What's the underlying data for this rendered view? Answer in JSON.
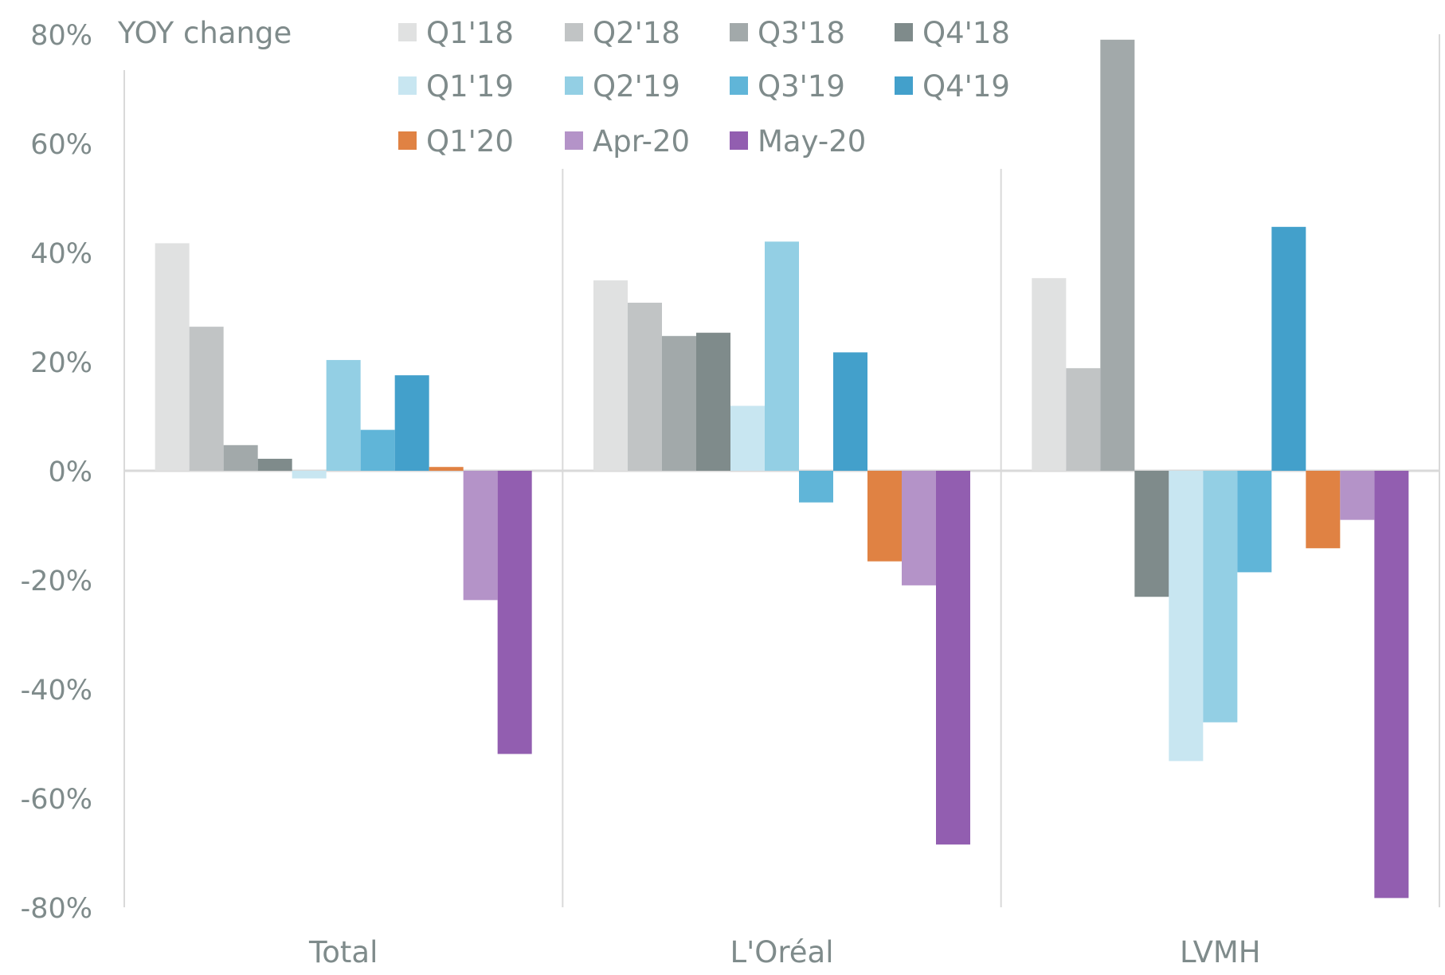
{
  "chart_data": {
    "type": "bar",
    "ylabel": "YOY change",
    "ylim": [
      -80,
      80
    ],
    "yticks": [
      "80%",
      "60%",
      "40%",
      "20%",
      "0%",
      "-20%",
      "-40%",
      "-60%",
      "-80%"
    ],
    "ytick_values": [
      80,
      60,
      40,
      20,
      0,
      -20,
      -40,
      -60,
      -80
    ],
    "grid": false,
    "legend_placement": "top",
    "categories": [
      "Total",
      "L'Oréal",
      "LVMH"
    ],
    "series": [
      {
        "name": "Q1'18",
        "color": "#e0e1e1",
        "values": [
          41.7,
          34.9,
          35.3
        ]
      },
      {
        "name": "Q2'18",
        "color": "#c1c4c5",
        "values": [
          26.4,
          30.8,
          18.8
        ]
      },
      {
        "name": "Q3'18",
        "color": "#a2a9aa",
        "values": [
          4.7,
          24.7,
          79.0
        ]
      },
      {
        "name": "Q4'18",
        "color": "#7f8b8b",
        "values": [
          2.2,
          25.3,
          -23.1
        ]
      },
      {
        "name": "Q1'19",
        "color": "#c8e6f1",
        "values": [
          -1.4,
          11.9,
          -53.2
        ]
      },
      {
        "name": "Q2'19",
        "color": "#93cfe4",
        "values": [
          20.3,
          42.0,
          -46.1
        ]
      },
      {
        "name": "Q3'19",
        "color": "#60b5d8",
        "values": [
          7.5,
          -5.8,
          -18.6
        ]
      },
      {
        "name": "Q4'19",
        "color": "#43a0cb",
        "values": [
          17.5,
          21.7,
          44.7
        ]
      },
      {
        "name": "Q1'20",
        "color": "#e08243",
        "values": [
          0.7,
          -16.6,
          -14.2
        ]
      },
      {
        "name": "Apr-20",
        "color": "#b493c8",
        "values": [
          -23.7,
          -21.0,
          -9.0
        ]
      },
      {
        "name": "May-20",
        "color": "#925eb0",
        "values": [
          -51.9,
          -68.5,
          -78.3
        ]
      }
    ]
  }
}
